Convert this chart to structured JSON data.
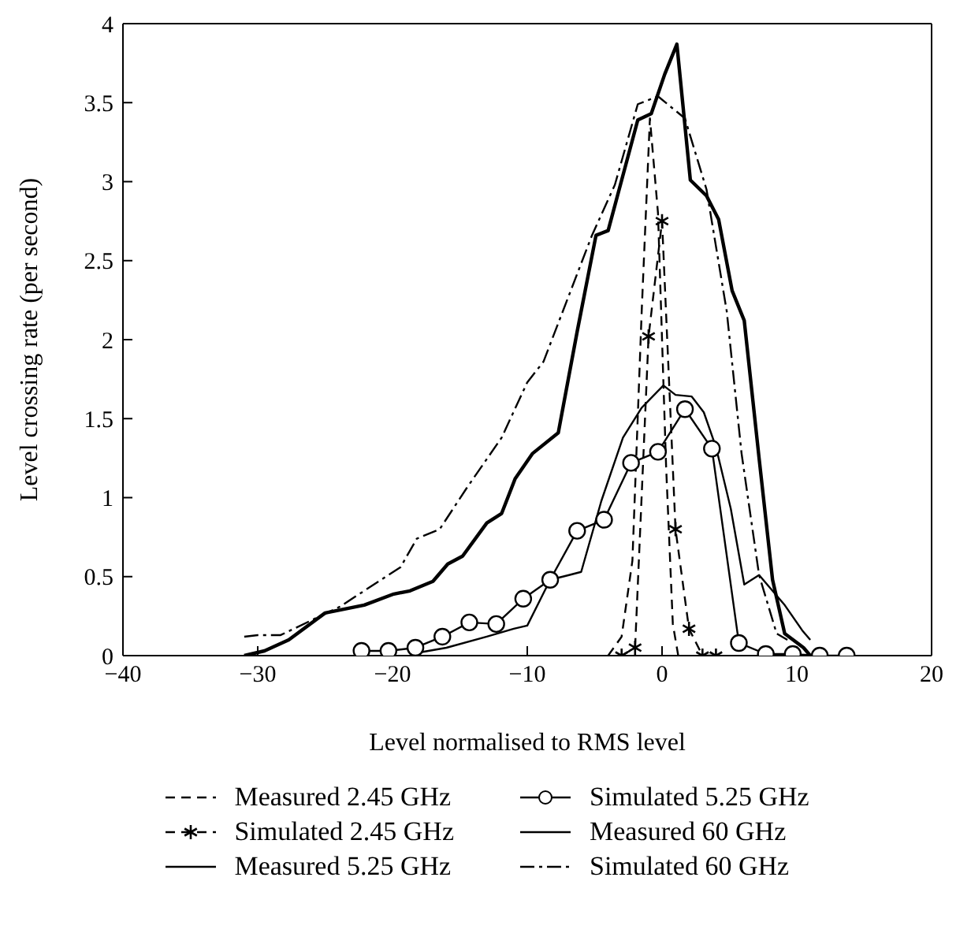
{
  "chart_data": {
    "type": "line",
    "xlabel": "Level normalised to RMS level",
    "ylabel": "Level crossing rate (per second)",
    "xlim": [
      -40,
      20
    ],
    "xticks": [
      {
        "value": -40,
        "label": "−40"
      },
      {
        "value": -30,
        "label": "−30"
      },
      {
        "value": -20,
        "label": "−20"
      },
      {
        "value": -10,
        "label": "−10"
      },
      0,
      10,
      20
    ],
    "ylim": [
      0,
      4
    ],
    "yticks": [
      0,
      0.5,
      1,
      1.5,
      2,
      2.5,
      3,
      3.5,
      4
    ],
    "legend": "bottom",
    "series": [
      {
        "name": "Measured 2.45 GHz",
        "color": "#000000",
        "line_style": "dashed",
        "marker": "none",
        "x": [
          -4,
          -3,
          -2.2,
          -1.5,
          -0.9,
          -0.3,
          0.3,
          0.8,
          1.2
        ],
        "values": [
          0,
          0.12,
          0.6,
          2.2,
          3.4,
          2.8,
          1.2,
          0.2,
          0
        ]
      },
      {
        "name": "Simulated 2.45 GHz",
        "color": "#000000",
        "line_style": "dashed",
        "marker": "cross",
        "x": [
          -3,
          -2,
          -1,
          0,
          1,
          2,
          3,
          4
        ],
        "values": [
          0,
          0.05,
          2.02,
          2.75,
          0.8,
          0.17,
          0,
          0
        ]
      },
      {
        "name": "Measured 5.25 GHz",
        "color": "#000000",
        "line_style": "solid",
        "marker": "none",
        "x": [
          -18,
          -16,
          -13,
          -11,
          -10,
          -8.3,
          -6.9,
          -6,
          -4.5,
          -2.9,
          -1.5,
          0.1,
          1,
          2.2,
          3.1,
          4,
          5.1,
          6.1,
          7.2,
          8.2,
          9.1,
          10.4,
          11
        ],
        "values": [
          0.02,
          0.05,
          0.12,
          0.17,
          0.19,
          0.48,
          0.51,
          0.53,
          0.98,
          1.38,
          1.57,
          1.71,
          1.65,
          1.64,
          1.54,
          1.32,
          0.93,
          0.45,
          0.51,
          0.41,
          0.32,
          0.16,
          0.1
        ]
      },
      {
        "name": "Simulated 5.25 GHz",
        "color": "#000000",
        "line_style": "solid",
        "marker": "circle",
        "x": [
          -22.3,
          -20.3,
          -18.3,
          -16.3,
          -14.3,
          -12.3,
          -10.3,
          -8.3,
          -6.3,
          -4.3,
          -2.3,
          -0.3,
          1.7,
          3.7,
          5.7,
          7.7,
          9.7,
          11.7,
          13.7
        ],
        "values": [
          0.03,
          0.03,
          0.05,
          0.12,
          0.21,
          0.2,
          0.36,
          0.48,
          0.79,
          0.86,
          1.22,
          1.29,
          1.56,
          1.31,
          0.08,
          0.01,
          0.01,
          0,
          0
        ]
      },
      {
        "name": "Measured 60 GHz",
        "color": "#000000",
        "line_style": "solid",
        "marker": "none",
        "x": [
          -31,
          -29.5,
          -27.7,
          -25,
          -22.1,
          -19.9,
          -18.7,
          -17,
          -15.9,
          -14.8,
          -13,
          -11.9,
          -10.9,
          -9.6,
          -7.7,
          -6.3,
          -4.9,
          -4,
          -1.8,
          -0.8,
          0.2,
          1.1,
          2.1,
          3.3,
          4.2,
          5.2,
          6.1,
          7.2,
          8.2,
          9.1,
          10.5,
          11
        ],
        "values": [
          0,
          0.03,
          0.1,
          0.27,
          0.32,
          0.39,
          0.41,
          0.47,
          0.58,
          0.63,
          0.84,
          0.9,
          1.12,
          1.28,
          1.41,
          2.05,
          2.66,
          2.69,
          3.39,
          3.43,
          3.68,
          3.87,
          3.01,
          2.91,
          2.76,
          2.31,
          2.12,
          1.25,
          0.48,
          0.14,
          0.05,
          0
        ]
      },
      {
        "name": "Simulated 60 GHz",
        "color": "#000000",
        "line_style": "dashdot",
        "marker": "none",
        "x": [
          -31,
          -30,
          -28.3,
          -23.9,
          -19.4,
          -18.2,
          -16.5,
          -14.5,
          -11.9,
          -10,
          -8.8,
          -5.2,
          -3.5,
          -1.8,
          -0.3,
          1.7,
          3.3,
          4.8,
          5.9,
          7.2,
          8.5,
          9.3
        ],
        "values": [
          0.12,
          0.13,
          0.13,
          0.31,
          0.56,
          0.74,
          0.8,
          1.06,
          1.38,
          1.73,
          1.86,
          2.66,
          2.98,
          3.49,
          3.54,
          3.4,
          2.95,
          2.18,
          1.28,
          0.51,
          0.14,
          0.1
        ]
      }
    ]
  }
}
